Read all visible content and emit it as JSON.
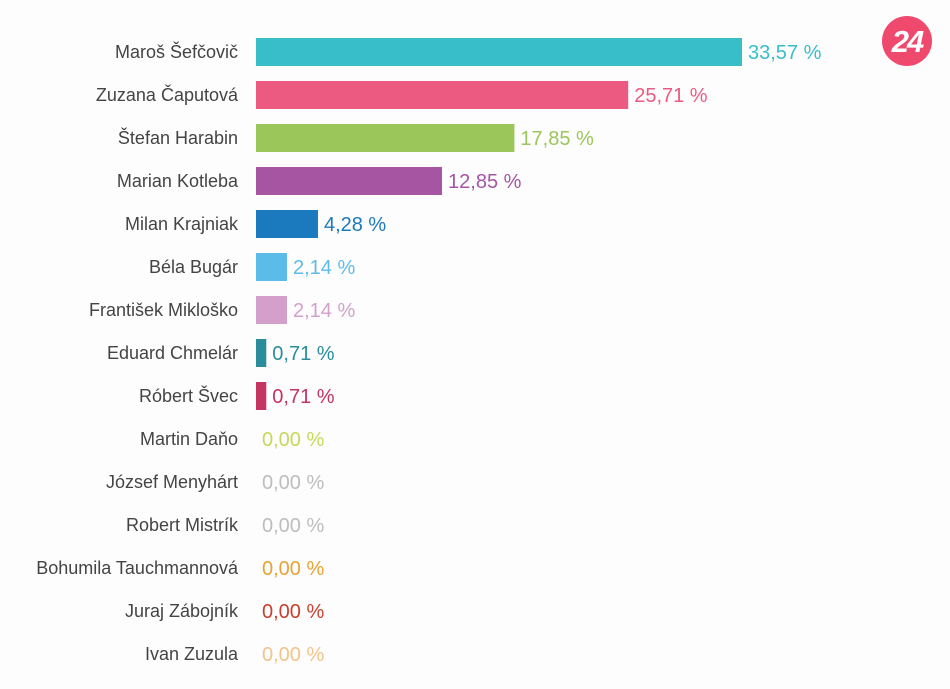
{
  "logo": {
    "text": "24",
    "color": "#ef4a6e"
  },
  "chart_data": {
    "type": "bar",
    "orientation": "horizontal",
    "title": "",
    "xlabel": "",
    "ylabel": "",
    "value_suffix": " %",
    "decimal_separator": ",",
    "grid": false,
    "legend": "none",
    "categories": [
      "Maroš Šefčovič",
      "Zuzana Čaputová",
      "Štefan Harabin",
      "Marian Kotleba",
      "Milan Krajniak",
      "Béla Bugár",
      "František Mikloško",
      "Eduard Chmelár",
      "Róbert Švec",
      "Martin Daňo",
      "József Menyhárt",
      "Robert Mistrík",
      "Bohumila Tauchmannová",
      "Juraj Zábojník",
      "Ivan Zuzula"
    ],
    "values": [
      33.57,
      25.71,
      17.85,
      12.85,
      4.28,
      2.14,
      2.14,
      0.71,
      0.71,
      0.0,
      0.0,
      0.0,
      0.0,
      0.0,
      0.0
    ],
    "value_labels": [
      "33,57 %",
      "25,71 %",
      "17,85 %",
      "12,85 %",
      "4,28 %",
      "2,14 %",
      "2,14 %",
      "0,71 %",
      "0,71 %",
      "0,00 %",
      "0,00 %",
      "0,00 %",
      "0,00 %",
      "0,00 %",
      "0,00 %"
    ],
    "colors": [
      "#37bec8",
      "#ec5a82",
      "#9bc65a",
      "#a655a3",
      "#1b79be",
      "#5cbce9",
      "#d59fcb",
      "#2b8c9c",
      "#c43561",
      "#c8d85a",
      "#bdbdbd",
      "#bdbdbd",
      "#e8a234",
      "#c8402e",
      "#f1c48a"
    ],
    "xlim": [
      0,
      33.57
    ]
  }
}
